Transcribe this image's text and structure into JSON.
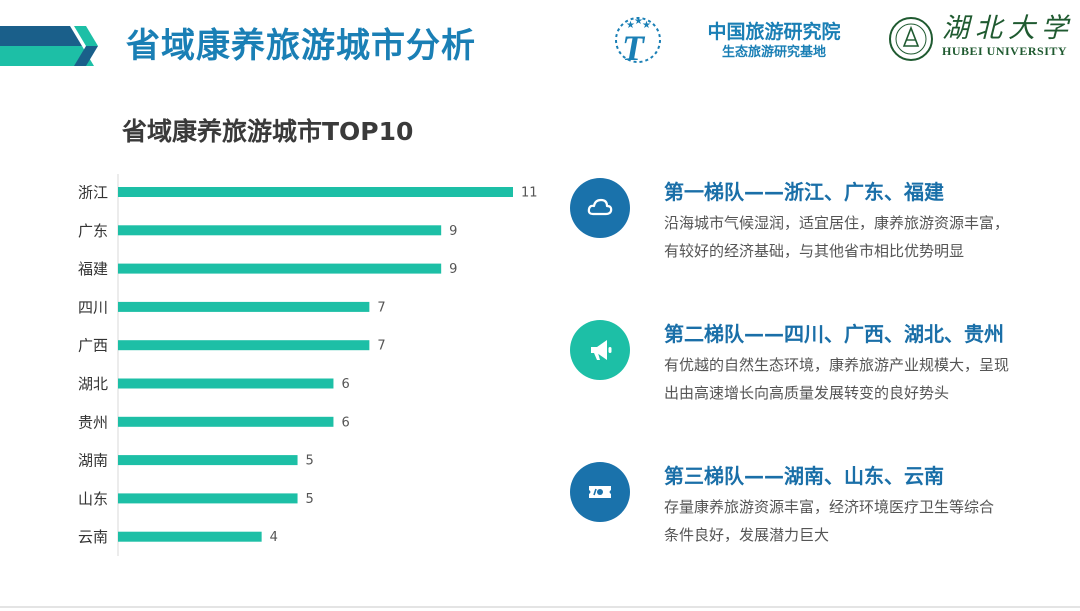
{
  "header": {
    "title": "省域康养旅游城市分析",
    "logo_cnta_name": "中国旅游研究院",
    "logo_cnta_sub": "生态旅游研究基地",
    "logo_hubu_cn": "湖北大学",
    "logo_hubu_en": "HUBEI UNIVERSITY",
    "colors": {
      "title": "#1a7fb5",
      "deco_dark": "#1a5f8a",
      "deco_teal": "#1dbfa6"
    }
  },
  "chart_title": "省域康养旅游城市TOP10",
  "chart_data": {
    "type": "bar",
    "orientation": "horizontal",
    "categories": [
      "浙江",
      "广东",
      "福建",
      "四川",
      "广西",
      "湖北",
      "贵州",
      "湖南",
      "山东",
      "云南"
    ],
    "values": [
      11,
      9,
      9,
      7,
      7,
      6,
      6,
      5,
      5,
      4
    ],
    "title": "",
    "xlabel": "",
    "ylabel": "",
    "xlim": [
      0,
      11
    ],
    "grid": false,
    "data_labels": true,
    "color": "#1dbfa6"
  },
  "tiers": [
    {
      "title": "第一梯队——浙江、广东、福建",
      "line1": "沿海城市气候湿润，适宜居住，康养旅游资源丰富，",
      "line2": "有较好的经济基础，与其他省市相比优势明显",
      "icon": "cloud-icon",
      "color": "#1a72ab"
    },
    {
      "title": "第二梯队——四川、广西、湖北、贵州",
      "line1": "有优越的自然生态环境，康养旅游产业规模大，呈现",
      "line2": "出由高速增长向高质量发展转变的良好势头",
      "icon": "megaphone-icon",
      "color": "#1dbfa6"
    },
    {
      "title": "第三梯队——湖南、山东、云南",
      "line1": "存量康养旅游资源丰富，经济环境医疗卫生等综合",
      "line2": "条件良好，发展潜力巨大",
      "icon": "ticket-icon",
      "color": "#1a72ab"
    }
  ]
}
